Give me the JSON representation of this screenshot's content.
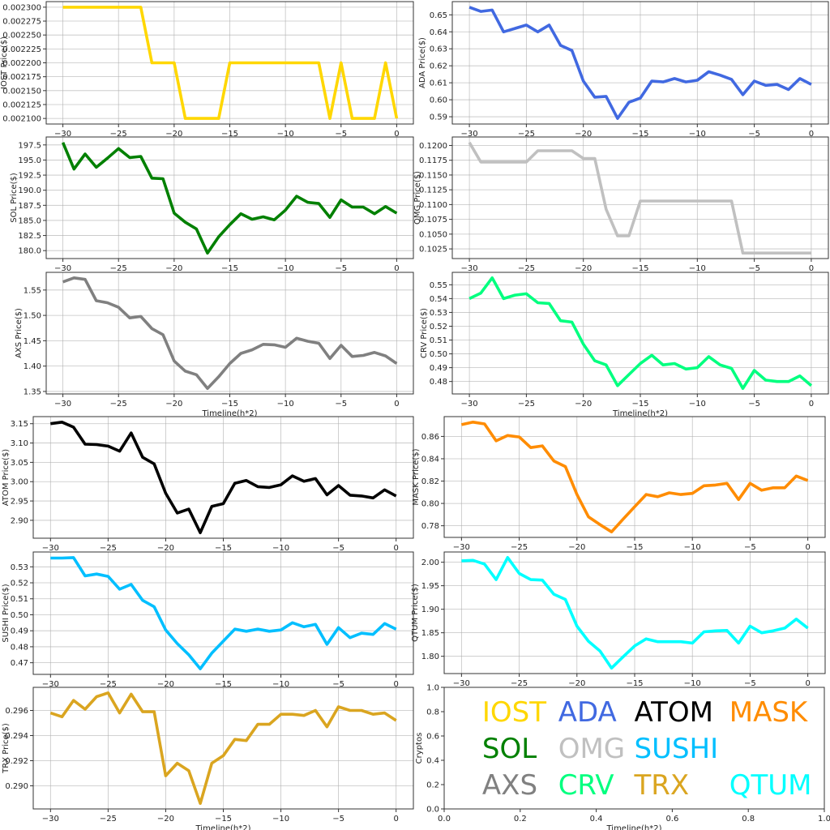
{
  "chart_data": [
    {
      "type": "line",
      "name": "IOST",
      "ylabel": "IOST Price($)",
      "xlabel": "",
      "color": "#FFD700",
      "x": [
        -30,
        -29,
        -28,
        -27,
        -26,
        -25,
        -24,
        -23,
        -22,
        -21,
        -20,
        -19,
        -18,
        -17,
        -16,
        -15,
        -14,
        -13,
        -12,
        -11,
        -10,
        -9,
        -8,
        -7,
        -6,
        -5,
        -4,
        -3,
        -2,
        -1,
        0
      ],
      "values": [
        0.0023,
        0.0023,
        0.0023,
        0.0023,
        0.0023,
        0.0023,
        0.0023,
        0.0023,
        0.0022,
        0.0022,
        0.0022,
        0.0021,
        0.0021,
        0.0021,
        0.0021,
        0.0022,
        0.0022,
        0.0022,
        0.0022,
        0.0022,
        0.0022,
        0.0022,
        0.0022,
        0.0022,
        0.0021,
        0.0022,
        0.0021,
        0.0021,
        0.0021,
        0.0022,
        0.0021
      ],
      "xticks": [
        "−30",
        "−25",
        "−20",
        "−15",
        "−10",
        "−5",
        "0"
      ],
      "yticks": [
        "0.002100",
        "0.002125",
        "0.002150",
        "0.002175",
        "0.002200",
        "0.002225",
        "0.002250",
        "0.002275",
        "0.002300"
      ],
      "ytick_values": [
        0.0021,
        0.002125,
        0.00215,
        0.002175,
        0.0022,
        0.002225,
        0.00225,
        0.002275,
        0.0023
      ],
      "grid": true
    },
    {
      "type": "line",
      "name": "ADA",
      "ylabel": "ADA  Price($)",
      "xlabel": "",
      "color": "#4169E1",
      "x": [
        -30,
        -29,
        -28,
        -27,
        -26,
        -25,
        -24,
        -23,
        -22,
        -21,
        -20,
        -19,
        -18,
        -17,
        -16,
        -15,
        -14,
        -13,
        -12,
        -11,
        -10,
        -9,
        -8,
        -7,
        -6,
        -5,
        -4,
        -3,
        -2,
        -1,
        0
      ],
      "values": [
        0.6545,
        0.652,
        0.6528,
        0.64,
        0.642,
        0.644,
        0.64,
        0.644,
        0.632,
        0.629,
        0.611,
        0.6015,
        0.602,
        0.589,
        0.5985,
        0.601,
        0.611,
        0.6105,
        0.6125,
        0.6105,
        0.6115,
        0.6165,
        0.6145,
        0.612,
        0.603,
        0.611,
        0.6085,
        0.609,
        0.606,
        0.6125,
        0.609
      ],
      "xticks": [
        "−30",
        "−25",
        "−20",
        "−15",
        "−10",
        "−5",
        "0"
      ],
      "yticks": [
        "0.59",
        "0.60",
        "0.61",
        "0.62",
        "0.63",
        "0.64",
        "0.65"
      ],
      "ytick_values": [
        0.59,
        0.6,
        0.61,
        0.62,
        0.63,
        0.64,
        0.65
      ],
      "grid": true
    },
    {
      "type": "line",
      "name": "SOL",
      "ylabel": "SOL Price($)",
      "xlabel": "",
      "color": "#008000",
      "x": [
        -30,
        -29,
        -28,
        -27,
        -26,
        -25,
        -24,
        -23,
        -22,
        -21,
        -20,
        -19,
        -18,
        -17,
        -16,
        -15,
        -14,
        -13,
        -12,
        -11,
        -10,
        -9,
        -8,
        -7,
        -6,
        -5,
        -4,
        -3,
        -2,
        -1,
        0
      ],
      "values": [
        197.9,
        193.5,
        196.0,
        193.8,
        195.3,
        196.9,
        195.4,
        195.6,
        192.0,
        191.9,
        186.2,
        184.7,
        183.6,
        179.6,
        182.3,
        184.3,
        186.1,
        185.2,
        185.6,
        185.1,
        186.7,
        189.0,
        188.0,
        187.8,
        185.5,
        188.4,
        187.2,
        187.2,
        186.1,
        187.3,
        186.2
      ],
      "xticks": [
        "−30",
        "−25",
        "−20",
        "−15",
        "−10",
        "−5",
        "0"
      ],
      "yticks": [
        "180.0",
        "182.5",
        "185.0",
        "187.5",
        "190.0",
        "192.5",
        "195.0",
        "197.5"
      ],
      "ytick_values": [
        180,
        182.5,
        185,
        187.5,
        190,
        192.5,
        195,
        197.5
      ],
      "grid": true
    },
    {
      "type": "line",
      "name": "OMG",
      "ylabel": "OMG  Price($)",
      "xlabel": "",
      "color": "#C0C0C0",
      "x": [
        -30,
        -29,
        -28,
        -27,
        -26,
        -25,
        -24,
        -23,
        -22,
        -21,
        -20,
        -19,
        -18,
        -17,
        -16,
        -15,
        -14,
        -13,
        -12,
        -11,
        -10,
        -9,
        -8,
        -7,
        -6,
        -5,
        -4,
        -3,
        -2,
        -1,
        0
      ],
      "values": [
        0.1205,
        0.1172,
        0.1172,
        0.1172,
        0.1172,
        0.1172,
        0.1191,
        0.1191,
        0.1191,
        0.1191,
        0.1178,
        0.1178,
        0.1092,
        0.1047,
        0.1047,
        0.1106,
        0.1106,
        0.1106,
        0.1106,
        0.1106,
        0.1106,
        0.1106,
        0.1106,
        0.1106,
        0.1018,
        0.1018,
        0.1018,
        0.1018,
        0.1018,
        0.1018,
        0.1018
      ],
      "xticks": [
        "−30",
        "−25",
        "−20",
        "−15",
        "−10",
        "−5",
        "0"
      ],
      "yticks": [
        "0.1025",
        "0.1050",
        "0.1075",
        "0.1100",
        "0.1125",
        "0.1150",
        "0.1175",
        "0.1200"
      ],
      "ytick_values": [
        0.1025,
        0.105,
        0.1075,
        0.11,
        0.1125,
        0.115,
        0.1175,
        0.12
      ],
      "grid": true
    },
    {
      "type": "line",
      "name": "AXS",
      "ylabel": "AXS Price($)",
      "xlabel": "Timeline(h*2)",
      "color": "#808080",
      "x": [
        -30,
        -29,
        -28,
        -27,
        -26,
        -25,
        -24,
        -23,
        -22,
        -21,
        -20,
        -19,
        -18,
        -17,
        -16,
        -15,
        -14,
        -13,
        -12,
        -11,
        -10,
        -9,
        -8,
        -7,
        -6,
        -5,
        -4,
        -3,
        -2,
        -1,
        0
      ],
      "values": [
        1.566,
        1.574,
        1.571,
        1.529,
        1.525,
        1.516,
        1.495,
        1.498,
        1.474,
        1.462,
        1.41,
        1.39,
        1.383,
        1.356,
        1.379,
        1.405,
        1.425,
        1.432,
        1.443,
        1.442,
        1.437,
        1.455,
        1.449,
        1.445,
        1.415,
        1.441,
        1.419,
        1.421,
        1.427,
        1.42,
        1.405
      ],
      "xticks": [
        "−30",
        "−25",
        "−20",
        "−15",
        "−10",
        "−5",
        "0"
      ],
      "yticks": [
        "1.35",
        "1.40",
        "1.45",
        "1.50",
        "1.55"
      ],
      "ytick_values": [
        1.35,
        1.4,
        1.45,
        1.5,
        1.55
      ],
      "grid": true
    },
    {
      "type": "line",
      "name": "CRV",
      "ylabel": "CRV  Price($)",
      "xlabel": "Timeline(h*2)",
      "color": "#00FF7F",
      "x": [
        -30,
        -29,
        -28,
        -27,
        -26,
        -25,
        -24,
        -23,
        -22,
        -21,
        -20,
        -19,
        -18,
        -17,
        -16,
        -15,
        -14,
        -13,
        -12,
        -11,
        -10,
        -9,
        -8,
        -7,
        -6,
        -5,
        -4,
        -3,
        -2,
        -1,
        0
      ],
      "values": [
        0.54,
        0.544,
        0.555,
        0.54,
        0.5425,
        0.5435,
        0.537,
        0.5365,
        0.524,
        0.523,
        0.507,
        0.495,
        0.492,
        0.477,
        0.485,
        0.493,
        0.499,
        0.492,
        0.493,
        0.489,
        0.49,
        0.498,
        0.492,
        0.4895,
        0.475,
        0.488,
        0.481,
        0.48,
        0.48,
        0.484,
        0.477
      ],
      "xticks": [
        "−30",
        "−25",
        "−20",
        "−15",
        "−10",
        "−5",
        "0"
      ],
      "yticks": [
        "0.48",
        "0.49",
        "0.50",
        "0.51",
        "0.52",
        "0.53",
        "0.54",
        "0.55"
      ],
      "ytick_values": [
        0.48,
        0.49,
        0.5,
        0.51,
        0.52,
        0.53,
        0.54,
        0.55
      ],
      "grid": true
    },
    {
      "type": "line",
      "name": "ATOM",
      "ylabel": "ATOM  Price($)",
      "xlabel": "",
      "color": "#000000",
      "x": [
        -30,
        -29,
        -28,
        -27,
        -26,
        -25,
        -24,
        -23,
        -22,
        -21,
        -20,
        -19,
        -18,
        -17,
        -16,
        -15,
        -14,
        -13,
        -12,
        -11,
        -10,
        -9,
        -8,
        -7,
        -6,
        -5,
        -4,
        -3,
        -2,
        -1,
        0
      ],
      "values": [
        3.15,
        3.154,
        3.141,
        3.097,
        3.096,
        3.092,
        3.079,
        3.126,
        3.063,
        3.046,
        2.97,
        2.919,
        2.929,
        2.868,
        2.936,
        2.943,
        2.996,
        3.003,
        2.987,
        2.985,
        2.992,
        3.015,
        3.001,
        3.008,
        2.966,
        2.99,
        2.965,
        2.963,
        2.958,
        2.979,
        2.963
      ],
      "xticks": [
        "−30",
        "−25",
        "−20",
        "−15",
        "−10",
        "−5",
        "0"
      ],
      "yticks": [
        "2.90",
        "2.95",
        "3.00",
        "3.05",
        "3.10",
        "3.15"
      ],
      "ytick_values": [
        2.9,
        2.95,
        3.0,
        3.05,
        3.1,
        3.15
      ],
      "grid": true
    },
    {
      "type": "line",
      "name": "MASK",
      "ylabel": "MASK  Price($)",
      "xlabel": "",
      "color": "#FF8C00",
      "x": [
        -30,
        -29,
        -28,
        -27,
        -26,
        -25,
        -24,
        -23,
        -22,
        -21,
        -20,
        -19,
        -18,
        -17,
        -16,
        -15,
        -14,
        -13,
        -12,
        -11,
        -10,
        -9,
        -8,
        -7,
        -6,
        -5,
        -4,
        -3,
        -2,
        -1,
        0
      ],
      "values": [
        0.8705,
        0.8728,
        0.8712,
        0.856,
        0.8608,
        0.8595,
        0.85,
        0.8515,
        0.838,
        0.833,
        0.808,
        0.788,
        0.781,
        0.7745,
        0.786,
        0.797,
        0.808,
        0.806,
        0.8095,
        0.808,
        0.809,
        0.8158,
        0.8165,
        0.818,
        0.8035,
        0.818,
        0.8118,
        0.814,
        0.814,
        0.8245,
        0.8205
      ],
      "xticks": [
        "−30",
        "−25",
        "−20",
        "−15",
        "−10",
        "−5",
        "0"
      ],
      "yticks": [
        "0.78",
        "0.80",
        "0.82",
        "0.84",
        "0.86"
      ],
      "ytick_values": [
        0.78,
        0.8,
        0.82,
        0.84,
        0.86
      ],
      "grid": true
    },
    {
      "type": "line",
      "name": "SUSHI",
      "ylabel": "SUSHI  Price($)",
      "xlabel": "",
      "color": "#00BFFF",
      "x": [
        -30,
        -29,
        -28,
        -27,
        -26,
        -25,
        -24,
        -23,
        -22,
        -21,
        -20,
        -19,
        -18,
        -17,
        -16,
        -15,
        -14,
        -13,
        -12,
        -11,
        -10,
        -9,
        -8,
        -7,
        -6,
        -5,
        -4,
        -3,
        -2,
        -1,
        0
      ],
      "values": [
        0.5355,
        0.5355,
        0.5358,
        0.5243,
        0.5255,
        0.524,
        0.516,
        0.519,
        0.509,
        0.505,
        0.4905,
        0.482,
        0.475,
        0.4662,
        0.476,
        0.4835,
        0.491,
        0.4897,
        0.491,
        0.4897,
        0.4905,
        0.495,
        0.4925,
        0.494,
        0.4815,
        0.492,
        0.4857,
        0.4885,
        0.4877,
        0.4945,
        0.491
      ],
      "xticks": [
        "−30",
        "−25",
        "−20",
        "−15",
        "−10",
        "−5",
        "0"
      ],
      "yticks": [
        "0.47",
        "0.48",
        "0.49",
        "0.50",
        "0.51",
        "0.52",
        "0.53"
      ],
      "ytick_values": [
        0.47,
        0.48,
        0.49,
        0.5,
        0.51,
        0.52,
        0.53
      ],
      "grid": true
    },
    {
      "type": "line",
      "name": "QTUM",
      "ylabel": "QTUM Price($)",
      "xlabel": "",
      "color": "#00FFFF",
      "x": [
        -30,
        -29,
        -28,
        -27,
        -26,
        -25,
        -24,
        -23,
        -22,
        -21,
        -20,
        -19,
        -18,
        -17,
        -16,
        -15,
        -14,
        -13,
        -12,
        -11,
        -10,
        -9,
        -8,
        -7,
        -6,
        -5,
        -4,
        -3,
        -2,
        -1,
        0
      ],
      "values": [
        2.003,
        2.004,
        1.996,
        1.963,
        2.01,
        1.976,
        1.963,
        1.962,
        1.932,
        1.921,
        1.864,
        1.832,
        1.811,
        1.775,
        1.799,
        1.822,
        1.837,
        1.831,
        1.831,
        1.831,
        1.828,
        1.852,
        1.854,
        1.855,
        1.828,
        1.864,
        1.85,
        1.854,
        1.86,
        1.879,
        1.86
      ],
      "xticks": [
        "−30",
        "−25",
        "−20",
        "−15",
        "−10",
        "−5",
        "0"
      ],
      "yticks": [
        "1.80",
        "1.85",
        "1.90",
        "1.95",
        "2.00"
      ],
      "ytick_values": [
        1.8,
        1.85,
        1.9,
        1.95,
        2.0
      ],
      "grid": true
    },
    {
      "type": "line",
      "name": "TRX",
      "ylabel": "TRX Price($)",
      "xlabel": "Timeline(h*2)",
      "color": "#DAA520",
      "x": [
        -30,
        -29,
        -28,
        -27,
        -26,
        -25,
        -24,
        -23,
        -22,
        -21,
        -20,
        -19,
        -18,
        -17,
        -16,
        -15,
        -14,
        -13,
        -12,
        -11,
        -10,
        -9,
        -8,
        -7,
        -6,
        -5,
        -4,
        -3,
        -2,
        -1,
        0
      ],
      "values": [
        0.2958,
        0.2955,
        0.2968,
        0.2961,
        0.2971,
        0.2974,
        0.2958,
        0.2973,
        0.2959,
        0.2959,
        0.2908,
        0.2918,
        0.2912,
        0.2886,
        0.2918,
        0.2924,
        0.2937,
        0.2936,
        0.2949,
        0.2949,
        0.2957,
        0.2957,
        0.2956,
        0.296,
        0.2947,
        0.2963,
        0.296,
        0.296,
        0.2957,
        0.2958,
        0.2952
      ],
      "xticks": [
        "−30",
        "−25",
        "−20",
        "−15",
        "−10",
        "−5",
        "0"
      ],
      "yticks": [
        "0.290",
        "0.292",
        "0.294",
        "0.296"
      ],
      "ytick_values": [
        0.29,
        0.292,
        0.294,
        0.296
      ],
      "grid": true
    }
  ],
  "legend_panel": {
    "ylabel": "Cryptos",
    "xlabel": "Timeline(h*2)",
    "xlim": [
      0,
      1
    ],
    "ylim": [
      0,
      1
    ],
    "xticks": [
      "0.0",
      "0.2",
      "0.4",
      "0.6",
      "0.8",
      "1.0"
    ],
    "yticks": [
      "0.0",
      "0.2",
      "0.4",
      "0.6",
      "0.8",
      "1.0"
    ],
    "entries": [
      {
        "label": "IOST",
        "color": "#FFD700"
      },
      {
        "label": "ADA",
        "color": "#4169E1"
      },
      {
        "label": "ATOM",
        "color": "#000000"
      },
      {
        "label": "MASK",
        "color": "#FF8C00"
      },
      {
        "label": "SOL",
        "color": "#008000"
      },
      {
        "label": "OMG",
        "color": "#C0C0C0"
      },
      {
        "label": "SUSHI",
        "color": "#00BFFF"
      },
      {
        "label": "AXS",
        "color": "#808080"
      },
      {
        "label": "CRV",
        "color": "#00FF7F"
      },
      {
        "label": "TRX",
        "color": "#DAA520"
      },
      {
        "label": "QTUM",
        "color": "#00FFFF"
      }
    ]
  }
}
